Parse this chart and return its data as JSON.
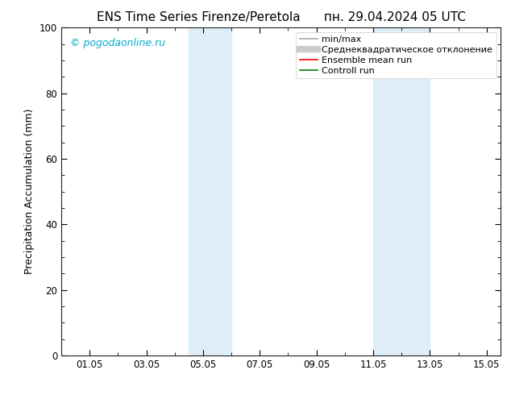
{
  "title_left": "ENS Time Series Firenze/Peretola",
  "title_right": "пн. 29.04.2024 05 UTC",
  "ylabel": "Precipitation Accumulation (mm)",
  "watermark": "© pogodaonline.ru",
  "watermark_color": "#00aacc",
  "xlim": [
    0,
    15.5
  ],
  "ylim": [
    0,
    100
  ],
  "xtick_labels": [
    "01.05",
    "03.05",
    "05.05",
    "07.05",
    "09.05",
    "11.05",
    "13.05",
    "15.05"
  ],
  "xtick_positions": [
    1,
    3,
    5,
    7,
    9,
    11,
    13,
    15
  ],
  "ytick_labels": [
    "0",
    "20",
    "40",
    "60",
    "80",
    "100"
  ],
  "ytick_positions": [
    0,
    20,
    40,
    60,
    80,
    100
  ],
  "shaded_regions": [
    {
      "xmin": 4.5,
      "xmax": 6.0,
      "color": "#ddeef8"
    },
    {
      "xmin": 11.0,
      "xmax": 13.0,
      "color": "#ddeef8"
    }
  ],
  "legend_items": [
    {
      "label": "min/max",
      "color": "#aaaaaa",
      "lw": 1.2,
      "type": "line"
    },
    {
      "label": "Среднеквадратическое отклонение",
      "color": "#cccccc",
      "lw": 6,
      "type": "line"
    },
    {
      "label": "Ensemble mean run",
      "color": "red",
      "lw": 1.2,
      "type": "line"
    },
    {
      "label": "Controll run",
      "color": "green",
      "lw": 1.2,
      "type": "line"
    }
  ],
  "background_color": "#ffffff",
  "plot_bg_color": "#ffffff",
  "title_fontsize": 11,
  "label_fontsize": 9,
  "tick_fontsize": 8.5,
  "legend_fontsize": 8
}
